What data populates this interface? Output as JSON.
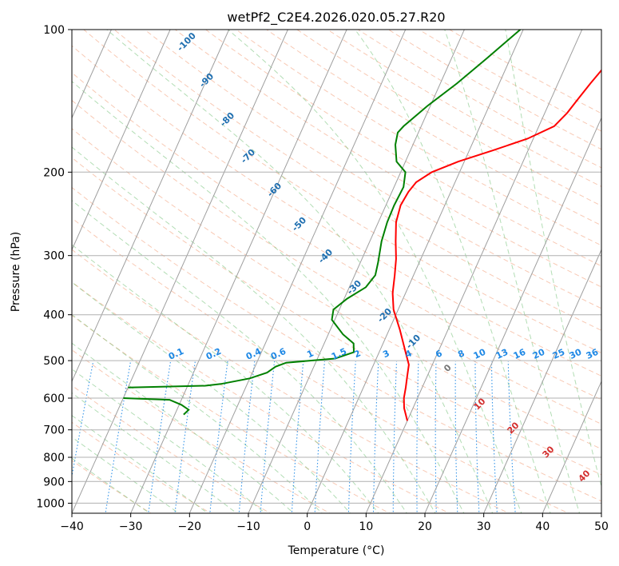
{
  "chart_data": {
    "type": "line",
    "title": "wetPf2_C2E4.2026.020.05.27.R20",
    "xlabel": "Temperature (°C)",
    "ylabel": "Pressure (hPa)",
    "xlim": [
      -40,
      50
    ],
    "ylim": [
      1050,
      100
    ],
    "x_ticks": [
      -40,
      -30,
      -20,
      -10,
      0,
      10,
      20,
      30,
      40,
      50
    ],
    "y_ticks": [
      100,
      200,
      300,
      400,
      500,
      600,
      700,
      800,
      900,
      1000
    ],
    "grid": true,
    "series": [
      {
        "name": "temperature",
        "color": "#ff0000",
        "points": [
          [
            10,
            670
          ],
          [
            8.5,
            630
          ],
          [
            7.7,
            600
          ],
          [
            7.2,
            570
          ],
          [
            6.6,
            540
          ],
          [
            6,
            510
          ],
          [
            4.5,
            480
          ],
          [
            1.8,
            430
          ],
          [
            -0.8,
            390
          ],
          [
            -2.2,
            360
          ],
          [
            -3.2,
            330
          ],
          [
            -4.2,
            305
          ],
          [
            -5.6,
            280
          ],
          [
            -7,
            255
          ],
          [
            -7.5,
            235
          ],
          [
            -7.2,
            220
          ],
          [
            -6.6,
            210
          ],
          [
            -4.7,
            200
          ],
          [
            -1,
            190
          ],
          [
            4,
            180
          ],
          [
            9,
            170
          ],
          [
            12.6,
            160
          ],
          [
            13.8,
            150
          ],
          [
            14.6,
            140
          ],
          [
            15.5,
            130
          ],
          [
            16.6,
            120
          ],
          [
            18.6,
            110
          ],
          [
            19.7,
            100
          ]
        ]
      },
      {
        "name": "dewpoint",
        "color": "#008000",
        "points": [
          [
            -28.5,
            650
          ],
          [
            -28,
            635
          ],
          [
            -29.6,
            620
          ],
          [
            -32,
            605
          ],
          [
            -40,
            600
          ],
          [
            null,
            null
          ],
          [
            -40,
            570
          ],
          [
            -27,
            565
          ],
          [
            -24.5,
            560
          ],
          [
            -20,
            545
          ],
          [
            -17.5,
            530
          ],
          [
            -16.5,
            515
          ],
          [
            -15,
            505
          ],
          [
            -7,
            495
          ],
          [
            -4.3,
            480
          ],
          [
            -5,
            460
          ],
          [
            -7.5,
            440
          ],
          [
            -10.5,
            410
          ],
          [
            -11,
            390
          ],
          [
            -9.5,
            370
          ],
          [
            -7.2,
            350
          ],
          [
            -6.5,
            330
          ],
          [
            -7,
            310
          ],
          [
            -8,
            280
          ],
          [
            -8.5,
            255
          ],
          [
            -8.6,
            235
          ],
          [
            -8.4,
            215
          ],
          [
            -9.2,
            200
          ],
          [
            -11.5,
            190
          ],
          [
            -13,
            175
          ],
          [
            -13.5,
            165
          ],
          [
            -13,
            160
          ],
          [
            -10.5,
            145
          ],
          [
            -7.2,
            130
          ],
          [
            -4,
            115
          ],
          [
            -0.5,
            100
          ]
        ]
      }
    ],
    "dry_adiabat_labels": [
      "-100",
      "-90",
      "-80",
      "-70",
      "-60",
      "-50",
      "-40",
      "-30",
      "-20",
      "-10",
      "0"
    ],
    "moist_adiabat_labels": [
      "10",
      "20",
      "30",
      "40"
    ],
    "mixing_ratio_labels": [
      "0.1",
      "0.2",
      "0.4",
      "0.6",
      "1",
      "1.5",
      "2",
      "3",
      "4",
      "6",
      "8",
      "10",
      "13",
      "16",
      "20",
      "25",
      "30",
      "36"
    ]
  }
}
